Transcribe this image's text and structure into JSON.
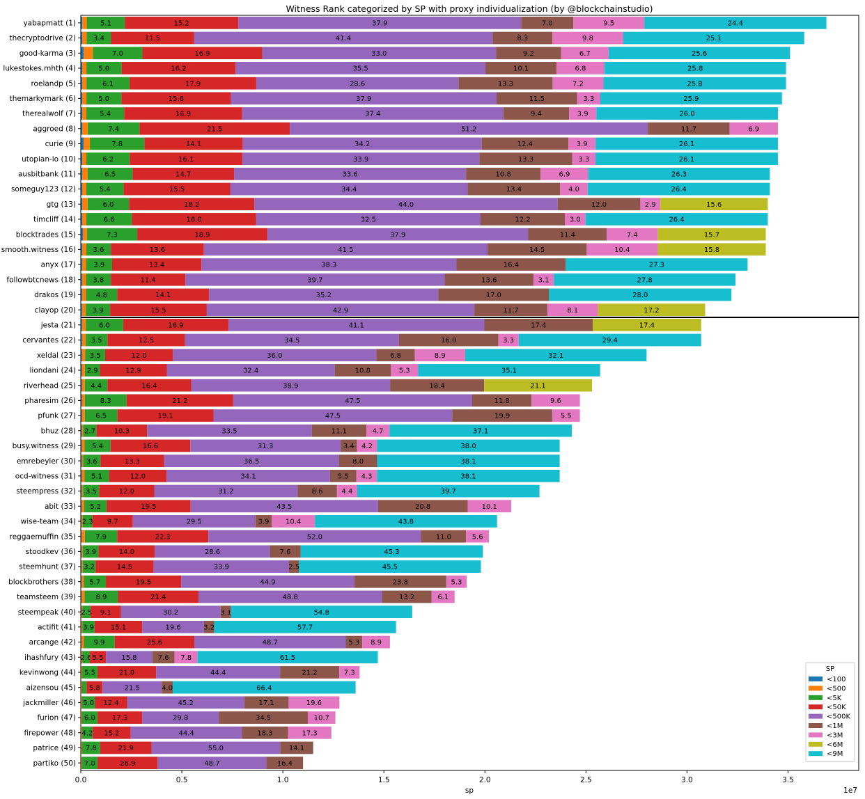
{
  "chart_data": {
    "type": "bar",
    "orientation": "horizontal",
    "stacked": true,
    "title": "Witness Rank categorized by SP with proxy individualization (by @blockchainstudio)",
    "xlabel": "sp",
    "x_offset_label": "1e7",
    "xlim": [
      0,
      3.85
    ],
    "x_unit_multiplier": 10000000,
    "x_ticks": [
      "0.0",
      "0.5",
      "1.0",
      "1.5",
      "2.0",
      "2.5",
      "3.0",
      "3.5"
    ],
    "x_tick_values": [
      0,
      0.5,
      1.0,
      1.5,
      2.0,
      2.5,
      3.0,
      3.5
    ],
    "legend": {
      "title": "SP",
      "placement": "lower-right"
    },
    "top20_separator_after_index": 20,
    "categories": [
      "<100",
      "<500",
      "<5K",
      "<50K",
      "<500K",
      "<1M",
      "<3M",
      "<6M",
      "<9M"
    ],
    "colors": [
      "#1f77b4",
      "#ff7f0e",
      "#2ca02c",
      "#d62728",
      "#9467bd",
      "#8c564b",
      "#e377c2",
      "#bcbd22",
      "#17becf"
    ],
    "witnesses": [
      {
        "name": "yabapmatt (1)",
        "total": 3.69,
        "pct": [
          0.2,
          0.6,
          5.1,
          15.2,
          37.9,
          7.0,
          9.5,
          0,
          24.4
        ]
      },
      {
        "name": "thecryptodrive (2)",
        "total": 3.58,
        "pct": [
          0.2,
          0.6,
          3.4,
          11.5,
          41.4,
          8.3,
          9.8,
          0,
          25.1
        ]
      },
      {
        "name": "good-karma (3)",
        "total": 3.51,
        "pct": [
          0.4,
          1.3,
          7.0,
          16.9,
          33.0,
          9.2,
          6.7,
          0,
          25.6
        ]
      },
      {
        "name": "lukestokes.mhth (4)",
        "total": 3.49,
        "pct": [
          0.2,
          0.6,
          5.0,
          16.2,
          35.5,
          10.1,
          6.8,
          0,
          25.8
        ]
      },
      {
        "name": "roelandp (5)",
        "total": 3.49,
        "pct": [
          0.2,
          0.6,
          6.1,
          17.9,
          28.6,
          13.3,
          7.2,
          0,
          25.8
        ]
      },
      {
        "name": "themarkymark (6)",
        "total": 3.47,
        "pct": [
          0.2,
          0.6,
          5.0,
          15.6,
          37.9,
          11.5,
          3.3,
          0,
          25.9
        ]
      },
      {
        "name": "therealwolf (7)",
        "total": 3.45,
        "pct": [
          0.2,
          0.6,
          5.4,
          16.9,
          37.4,
          9.4,
          3.9,
          0,
          26.0
        ]
      },
      {
        "name": "aggroed (8)",
        "total": 3.45,
        "pct": [
          0.2,
          0.8,
          7.4,
          21.5,
          51.2,
          11.7,
          6.9,
          0,
          0
        ]
      },
      {
        "name": "curie (9)",
        "total": 3.45,
        "pct": [
          0.4,
          0.9,
          7.8,
          14.1,
          34.2,
          12.4,
          3.9,
          0,
          26.1
        ]
      },
      {
        "name": "utopian-io (10)",
        "total": 3.45,
        "pct": [
          0.2,
          0.6,
          6.2,
          16.1,
          33.9,
          13.3,
          3.3,
          0,
          26.1
        ]
      },
      {
        "name": "ausbitbank (11)",
        "total": 3.41,
        "pct": [
          0.2,
          0.8,
          6.5,
          14.7,
          33.6,
          10.8,
          6.9,
          0,
          26.3
        ]
      },
      {
        "name": "someguy123 (12)",
        "total": 3.41,
        "pct": [
          0.2,
          0.6,
          5.4,
          15.5,
          34.4,
          13.4,
          4.0,
          0,
          26.4
        ]
      },
      {
        "name": "gtg (13)",
        "total": 3.4,
        "pct": [
          0.2,
          0.8,
          6.0,
          18.2,
          44.0,
          12.0,
          2.9,
          15.6,
          0
        ]
      },
      {
        "name": "timcliff (14)",
        "total": 3.4,
        "pct": [
          0.2,
          0.6,
          6.6,
          18.0,
          32.5,
          12.2,
          3.0,
          0,
          26.4
        ]
      },
      {
        "name": "blocktrades (15)",
        "total": 3.39,
        "pct": [
          0.3,
          0.6,
          7.3,
          18.9,
          37.9,
          11.4,
          7.4,
          15.7,
          0
        ]
      },
      {
        "name": "smooth.witness (16)",
        "total": 3.39,
        "pct": [
          0.2,
          0.6,
          3.6,
          13.6,
          41.5,
          14.5,
          10.4,
          15.8,
          0
        ]
      },
      {
        "name": "anyx (17)",
        "total": 3.3,
        "pct": [
          0.2,
          0.6,
          3.9,
          13.4,
          38.3,
          16.4,
          0,
          0,
          27.3
        ]
      },
      {
        "name": "followbtcnews (18)",
        "total": 3.24,
        "pct": [
          0.2,
          0.6,
          3.8,
          11.4,
          39.7,
          13.6,
          3.1,
          0,
          27.8
        ]
      },
      {
        "name": "drakos (19)",
        "total": 3.22,
        "pct": [
          0.2,
          0.6,
          4.8,
          14.1,
          35.2,
          17.0,
          0,
          0,
          28.0
        ]
      },
      {
        "name": "clayop (20)",
        "total": 3.09,
        "pct": [
          0.2,
          0.6,
          3.9,
          15.5,
          42.9,
          11.7,
          8.1,
          17.2,
          0
        ]
      },
      {
        "name": "jesta (21)",
        "total": 3.07,
        "pct": [
          0.2,
          0.6,
          6.0,
          16.9,
          41.1,
          17.4,
          0,
          17.4,
          0
        ]
      },
      {
        "name": "cervantes (22)",
        "total": 3.07,
        "pct": [
          0.2,
          0.6,
          3.5,
          12.5,
          34.5,
          16.0,
          3.3,
          0,
          29.4
        ]
      },
      {
        "name": "xeldal (23)",
        "total": 2.8,
        "pct": [
          0.2,
          0.6,
          3.5,
          12.0,
          36.0,
          6.8,
          8.9,
          0,
          32.1
        ]
      },
      {
        "name": "liondani (24)",
        "total": 2.57,
        "pct": [
          0.2,
          0.6,
          2.9,
          12.9,
          32.4,
          10.8,
          5.3,
          0,
          35.1
        ]
      },
      {
        "name": "riverhead (25)",
        "total": 2.53,
        "pct": [
          0.2,
          0.6,
          4.4,
          16.4,
          38.9,
          18.4,
          0,
          21.1,
          0
        ]
      },
      {
        "name": "pharesim (26)",
        "total": 2.47,
        "pct": [
          0.2,
          0.6,
          8.3,
          21.2,
          47.5,
          11.8,
          9.6,
          0,
          0
        ]
      },
      {
        "name": "pfunk (27)",
        "total": 2.47,
        "pct": [
          0.2,
          0.6,
          6.5,
          19.1,
          47.5,
          19.9,
          5.5,
          0,
          0
        ]
      },
      {
        "name": "bhuz (28)",
        "total": 2.43,
        "pct": [
          0.2,
          0.3,
          2.7,
          10.3,
          33.5,
          11.1,
          4.7,
          0,
          37.1
        ]
      },
      {
        "name": "busy.witness (29)",
        "total": 2.37,
        "pct": [
          0.2,
          0.6,
          5.4,
          16.6,
          31.3,
          3.4,
          4.2,
          0,
          38.0
        ]
      },
      {
        "name": "emrebeyler (30)",
        "total": 2.37,
        "pct": [
          0.2,
          0.3,
          3.6,
          13.3,
          36.5,
          8.0,
          0,
          0,
          38.1
        ]
      },
      {
        "name": "ocd-witness (31)",
        "total": 2.37,
        "pct": [
          0.2,
          0.6,
          5.1,
          12.0,
          34.1,
          5.5,
          4.3,
          0,
          38.1
        ]
      },
      {
        "name": "steempress (32)",
        "total": 2.27,
        "pct": [
          0.2,
          0.3,
          3.5,
          12.0,
          31.2,
          8.6,
          4.4,
          0,
          39.7
        ]
      },
      {
        "name": "abit (33)",
        "total": 2.13,
        "pct": [
          0.2,
          0.6,
          5.2,
          19.5,
          43.5,
          20.8,
          10.1,
          0,
          0
        ]
      },
      {
        "name": "wise-team (34)",
        "total": 2.06,
        "pct": [
          0.2,
          0.3,
          2.3,
          9.7,
          29.5,
          3.9,
          10.4,
          0,
          43.8
        ]
      },
      {
        "name": "reggaemuffin (35)",
        "total": 2.02,
        "pct": [
          0.2,
          0.8,
          7.9,
          22.3,
          52.0,
          11.0,
          5.6,
          0,
          0
        ]
      },
      {
        "name": "stoodkev (36)",
        "total": 1.99,
        "pct": [
          0.2,
          0.3,
          3.9,
          14.0,
          28.6,
          7.6,
          0,
          0,
          45.3
        ]
      },
      {
        "name": "steemhunt (37)",
        "total": 1.98,
        "pct": [
          0.2,
          0.3,
          3.2,
          14.5,
          33.9,
          2.5,
          0,
          0,
          45.5
        ]
      },
      {
        "name": "blockbrothers (38)",
        "total": 1.91,
        "pct": [
          0.2,
          0.6,
          5.7,
          19.5,
          44.9,
          23.8,
          5.3,
          0,
          0
        ]
      },
      {
        "name": "teamsteem (39)",
        "total": 1.85,
        "pct": [
          0.2,
          0.8,
          8.9,
          21.4,
          48.8,
          13.2,
          6.1,
          0,
          0
        ]
      },
      {
        "name": "steempeak (40)",
        "total": 1.64,
        "pct": [
          0.2,
          0.3,
          2.5,
          9.1,
          30.2,
          3.1,
          0,
          0,
          54.8
        ]
      },
      {
        "name": "actifit (41)",
        "total": 1.56,
        "pct": [
          0.2,
          0.3,
          3.9,
          15.1,
          19.6,
          3.2,
          0,
          0,
          57.7
        ]
      },
      {
        "name": "arcange (42)",
        "total": 1.53,
        "pct": [
          0.2,
          0.8,
          9.9,
          25.6,
          48.7,
          5.3,
          8.9,
          0,
          0
        ]
      },
      {
        "name": "ihashfury (43)",
        "total": 1.47,
        "pct": [
          0.2,
          0.3,
          2.6,
          5.5,
          15.8,
          7.6,
          7.8,
          0,
          61.5
        ]
      },
      {
        "name": "kevinwong (44)",
        "total": 1.38,
        "pct": [
          0.2,
          0.3,
          5.5,
          21.0,
          44.4,
          21.2,
          7.3,
          0,
          0
        ]
      },
      {
        "name": "aizensou (45)",
        "total": 1.36,
        "pct": [
          0.2,
          0.3,
          1.6,
          5.8,
          21.5,
          4.0,
          0,
          0,
          66.4
        ]
      },
      {
        "name": "jackmiller (46)",
        "total": 1.28,
        "pct": [
          0.2,
          0.3,
          5.0,
          12.4,
          45.2,
          17.1,
          19.6,
          0,
          0
        ]
      },
      {
        "name": "furion (47)",
        "total": 1.26,
        "pct": [
          0.2,
          0.3,
          6.0,
          17.3,
          29.8,
          34.5,
          10.7,
          0,
          0
        ]
      },
      {
        "name": "firepower (48)",
        "total": 1.24,
        "pct": [
          0.2,
          0.3,
          4.2,
          15.2,
          44.4,
          18.3,
          17.3,
          0,
          0
        ]
      },
      {
        "name": "patrice (49)",
        "total": 1.15,
        "pct": [
          0.2,
          0.3,
          7.8,
          21.9,
          55.0,
          14.1,
          0,
          0,
          0
        ]
      },
      {
        "name": "partiko (50)",
        "total": 1.1,
        "pct": [
          0.2,
          0.3,
          7.0,
          26.9,
          48.7,
          16.4,
          0,
          0,
          0
        ]
      }
    ]
  }
}
